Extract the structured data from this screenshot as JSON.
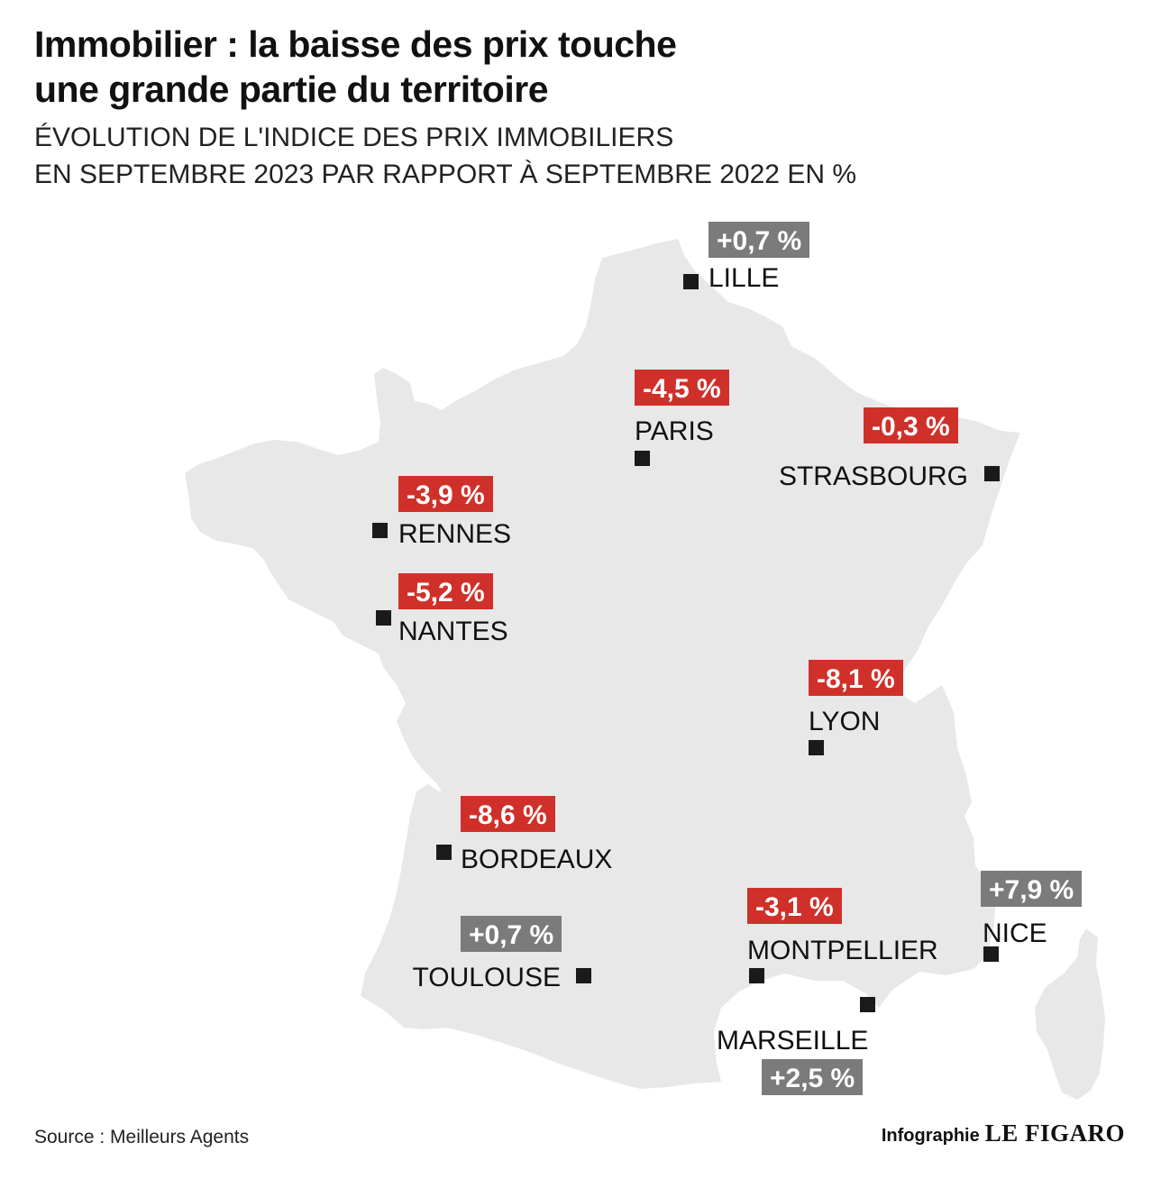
{
  "title": {
    "line1": "Immobilier : la baisse des prix touche",
    "line2": "une grande partie du territoire"
  },
  "subtitle": {
    "line1": "ÉVOLUTION DE L'INDICE DES PRIX IMMOBILIERS",
    "line2": "EN SEPTEMBRE 2023 PAR RAPPORT À SEPTEMBRE 2022 EN %"
  },
  "colors": {
    "decrease": "#d0302a",
    "increase": "#7b7b7b",
    "land": "#e8e8e8",
    "marker": "#1a1a1a"
  },
  "cities": [
    {
      "name": "LILLE",
      "value": "+0,7 %",
      "trend": "increase"
    },
    {
      "name": "PARIS",
      "value": "-4,5 %",
      "trend": "decrease"
    },
    {
      "name": "STRASBOURG",
      "value": "-0,3 %",
      "trend": "decrease"
    },
    {
      "name": "RENNES",
      "value": "-3,9 %",
      "trend": "decrease"
    },
    {
      "name": "NANTES",
      "value": "-5,2 %",
      "trend": "decrease"
    },
    {
      "name": "LYON",
      "value": "-8,1 %",
      "trend": "decrease"
    },
    {
      "name": "BORDEAUX",
      "value": "-8,6 %",
      "trend": "decrease"
    },
    {
      "name": "TOULOUSE",
      "value": "+0,7 %",
      "trend": "increase"
    },
    {
      "name": "MONTPELLIER",
      "value": "-3,1 %",
      "trend": "decrease"
    },
    {
      "name": "NICE",
      "value": "+7,9 %",
      "trend": "increase"
    },
    {
      "name": "MARSEILLE",
      "value": "+2,5 %",
      "trend": "increase"
    }
  ],
  "footer": {
    "source": "Source : Meilleurs Agents",
    "credit_prefix": "Infographie",
    "credit_logo": "LE FIGARO"
  }
}
